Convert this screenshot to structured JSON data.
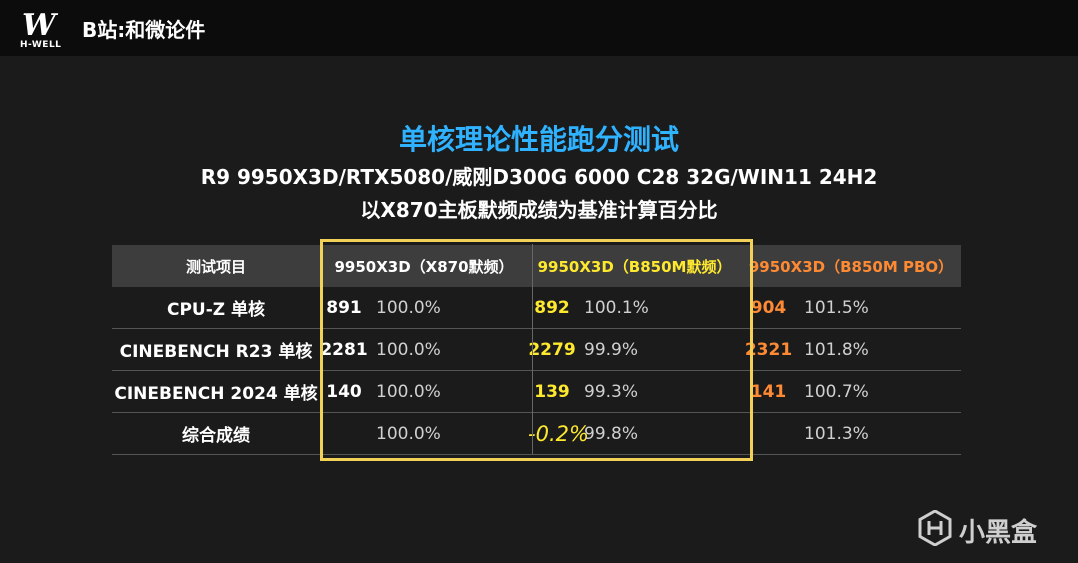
{
  "header": {
    "logo_text": "H-WELL",
    "channel": "B站:和微论件"
  },
  "titles": {
    "main": "单核理论性能跑分测试",
    "config": "R9 9950X3D/RTX5080/威刚D300G 6000 C28 32G/WIN11 24H2",
    "note": "以X870主板默频成绩为基准计算百分比"
  },
  "table": {
    "headers": [
      "测试项目",
      "9950X3D（X870默频）",
      "9950X3D（B850M默频）",
      "9950X3D（B850M PBO）"
    ],
    "rows": [
      {
        "name": "CPU-Z 单核",
        "x870": "891",
        "x870_pct": "100.0%",
        "b850": "892",
        "b850_pct": "100.1%",
        "pbo": "904",
        "pbo_pct": "101.5%"
      },
      {
        "name": "CINEBENCH R23 单核",
        "x870": "2281",
        "x870_pct": "100.0%",
        "b850": "2279",
        "b850_pct": "99.9%",
        "pbo": "2321",
        "pbo_pct": "101.8%"
      },
      {
        "name": "CINEBENCH 2024 单核",
        "x870": "140",
        "x870_pct": "100.0%",
        "b850": "139",
        "b850_pct": "99.3%",
        "pbo": "141",
        "pbo_pct": "100.7%"
      },
      {
        "name": "综合成绩",
        "x870": "",
        "x870_pct": "100.0%",
        "b850": "-0.2%",
        "b850_pct": "99.8%",
        "pbo": "",
        "pbo_pct": "101.3%"
      }
    ]
  },
  "watermark": {
    "text": "小黑盒",
    "icon": "xiaoheihe-logo-icon"
  },
  "colors": {
    "title_blue": "#2fb2ff",
    "b850_yellow": "#ffe92e",
    "pbo_orange": "#ff8a33",
    "frame": "#f2d158"
  }
}
